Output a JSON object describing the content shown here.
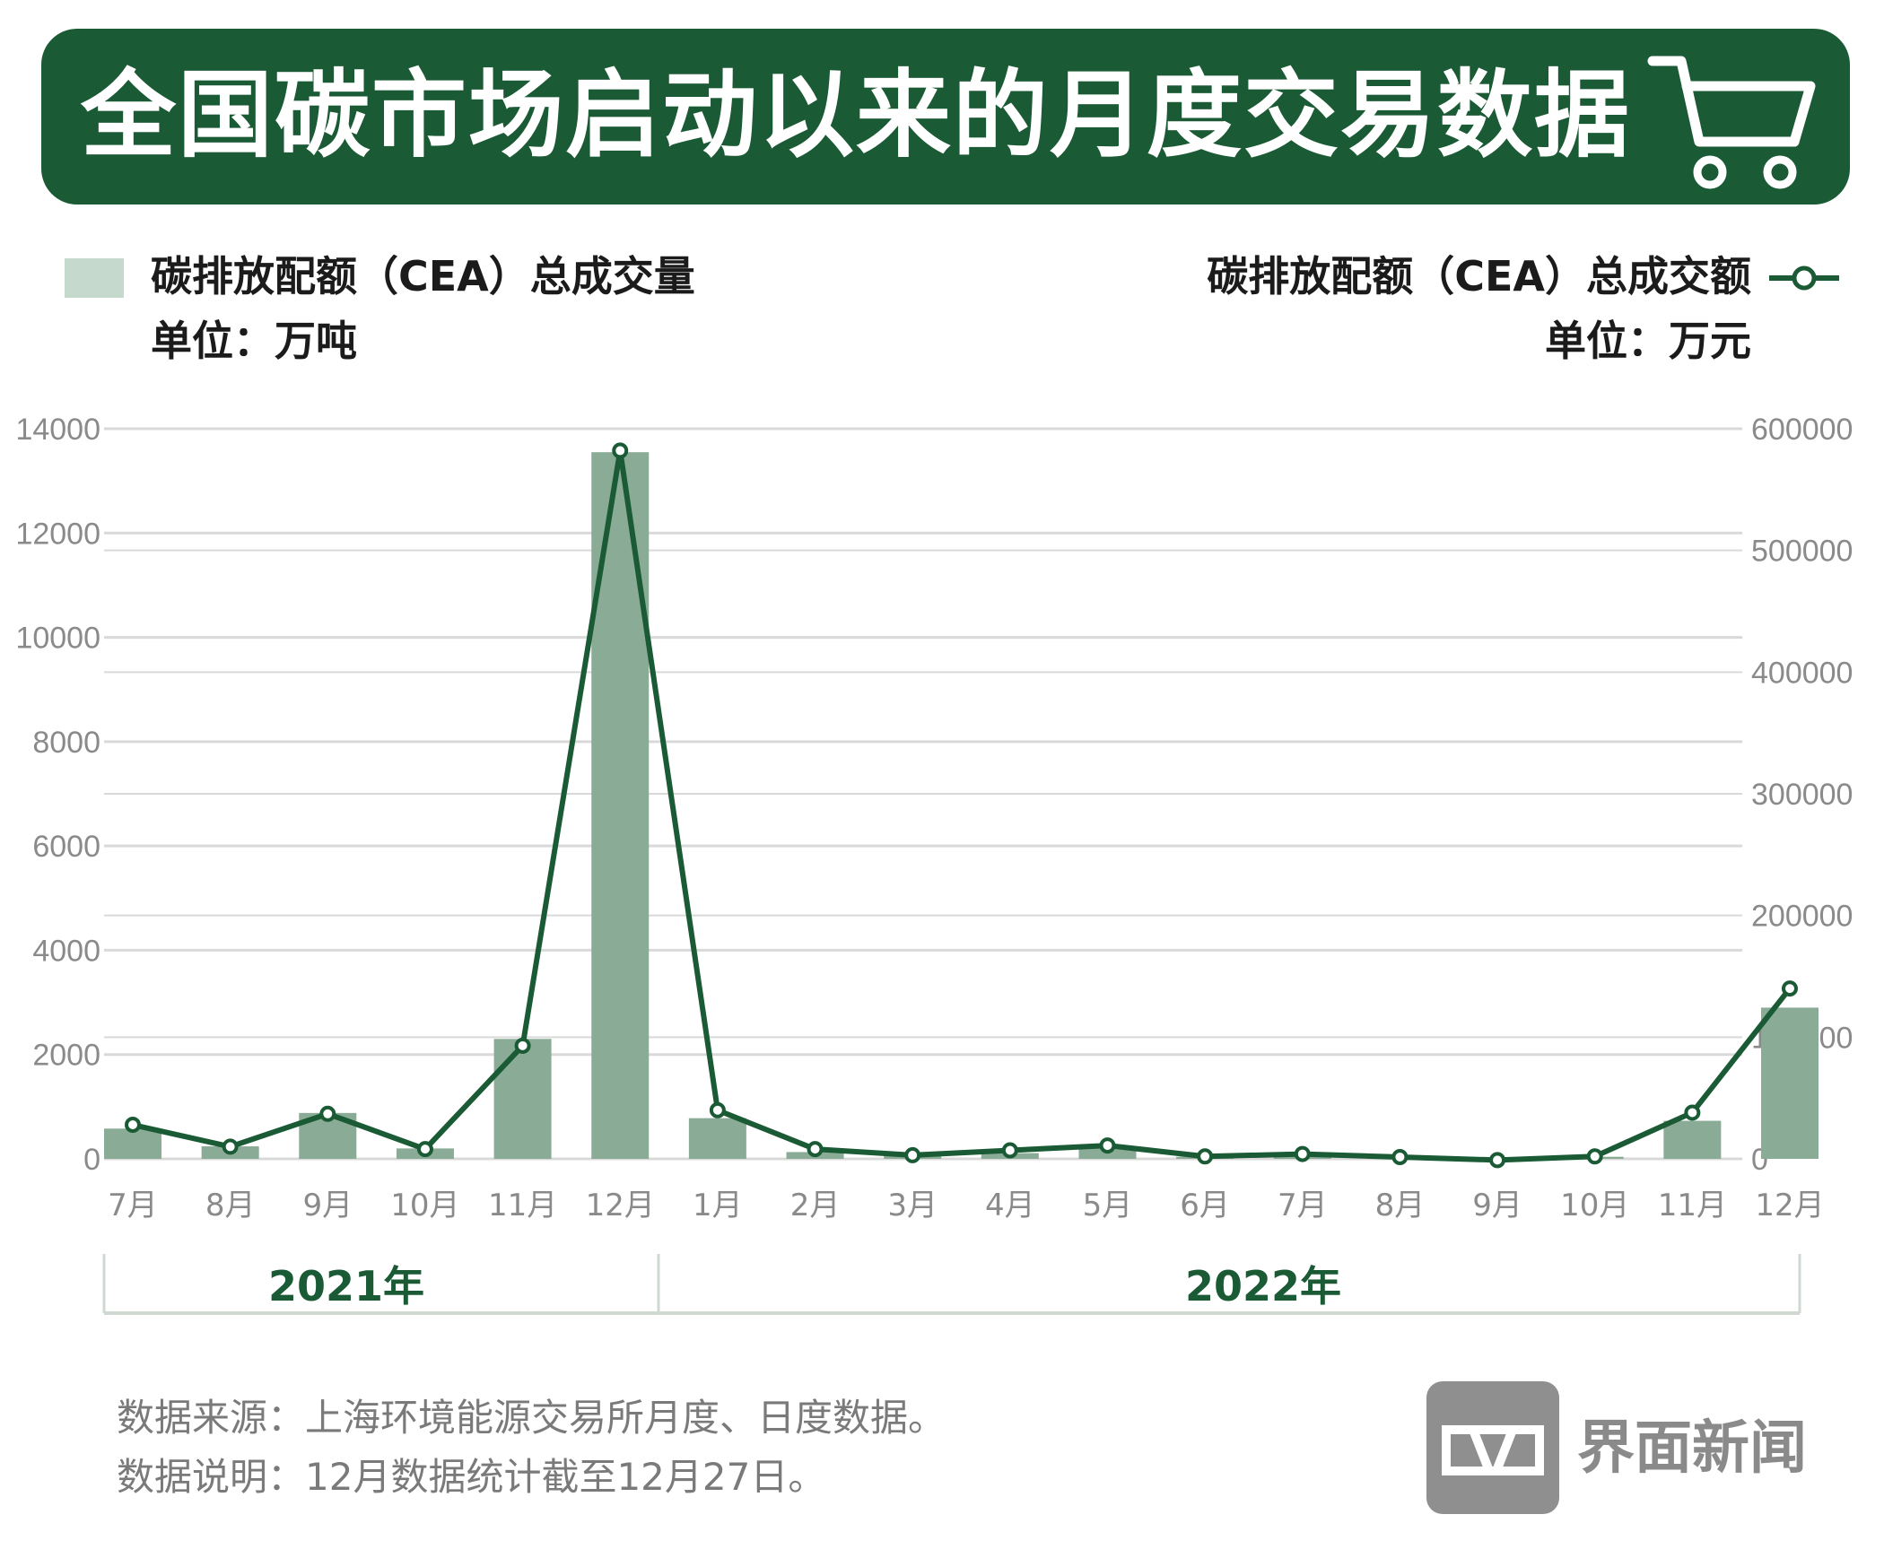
{
  "header": {
    "title": "全国碳市场启动以来的月度交易数据",
    "icon": "shopping-cart-icon"
  },
  "legend": {
    "volume_label": "碳排放配额（CEA）总成交量",
    "volume_unit": "单位：万吨",
    "amount_label": "碳排放配额（CEA）总成交额",
    "amount_unit": "单位：万元"
  },
  "colors": {
    "banner": "#1a5a34",
    "bar": "#8aab96",
    "line": "#1a5a34",
    "legend_bar": "#c5d9cc",
    "grid": "#d9d9d9",
    "tick_text": "#8a8a8a",
    "year_text": "#1a5a34"
  },
  "chart_data": {
    "type": "bar",
    "categories": [
      "7月",
      "8月",
      "9月",
      "10月",
      "11月",
      "12月",
      "1月",
      "2月",
      "3月",
      "4月",
      "5月",
      "6月",
      "7月",
      "8月",
      "9月",
      "10月",
      "11月",
      "12月"
    ],
    "year_groups": [
      {
        "label": "2021年",
        "start": 0,
        "end": 5
      },
      {
        "label": "2022年",
        "start": 6,
        "end": 17
      }
    ],
    "series": [
      {
        "name": "碳排放配额（CEA）总成交量",
        "type": "bar",
        "axis": "left",
        "values": [
          580,
          240,
          880,
          200,
          2300,
          13550,
          780,
          130,
          60,
          110,
          240,
          40,
          70,
          60,
          20,
          40,
          730,
          2900
        ]
      },
      {
        "name": "碳排放配额（CEA）总成交额",
        "type": "line",
        "axis": "right",
        "values": [
          28000,
          10000,
          37000,
          8000,
          93000,
          582000,
          40000,
          8000,
          3000,
          7000,
          11000,
          2000,
          4000,
          1500,
          -1000,
          2000,
          38000,
          140000
        ]
      }
    ],
    "y_left": {
      "min": 0,
      "max": 14000,
      "ticks": [
        0,
        2000,
        4000,
        6000,
        8000,
        10000,
        12000,
        14000
      ]
    },
    "y_right": {
      "min": 0,
      "max": 600000,
      "ticks": [
        0,
        100000,
        200000,
        300000,
        400000,
        500000,
        600000
      ]
    },
    "grid": true
  },
  "footer": {
    "source": "数据来源：上海环境能源交易所月度、日度数据。",
    "note": "数据说明：12月数据统计截至12月27日。"
  },
  "logo": {
    "text": "界面新闻",
    "icon": "jiemian-logo-icon"
  }
}
